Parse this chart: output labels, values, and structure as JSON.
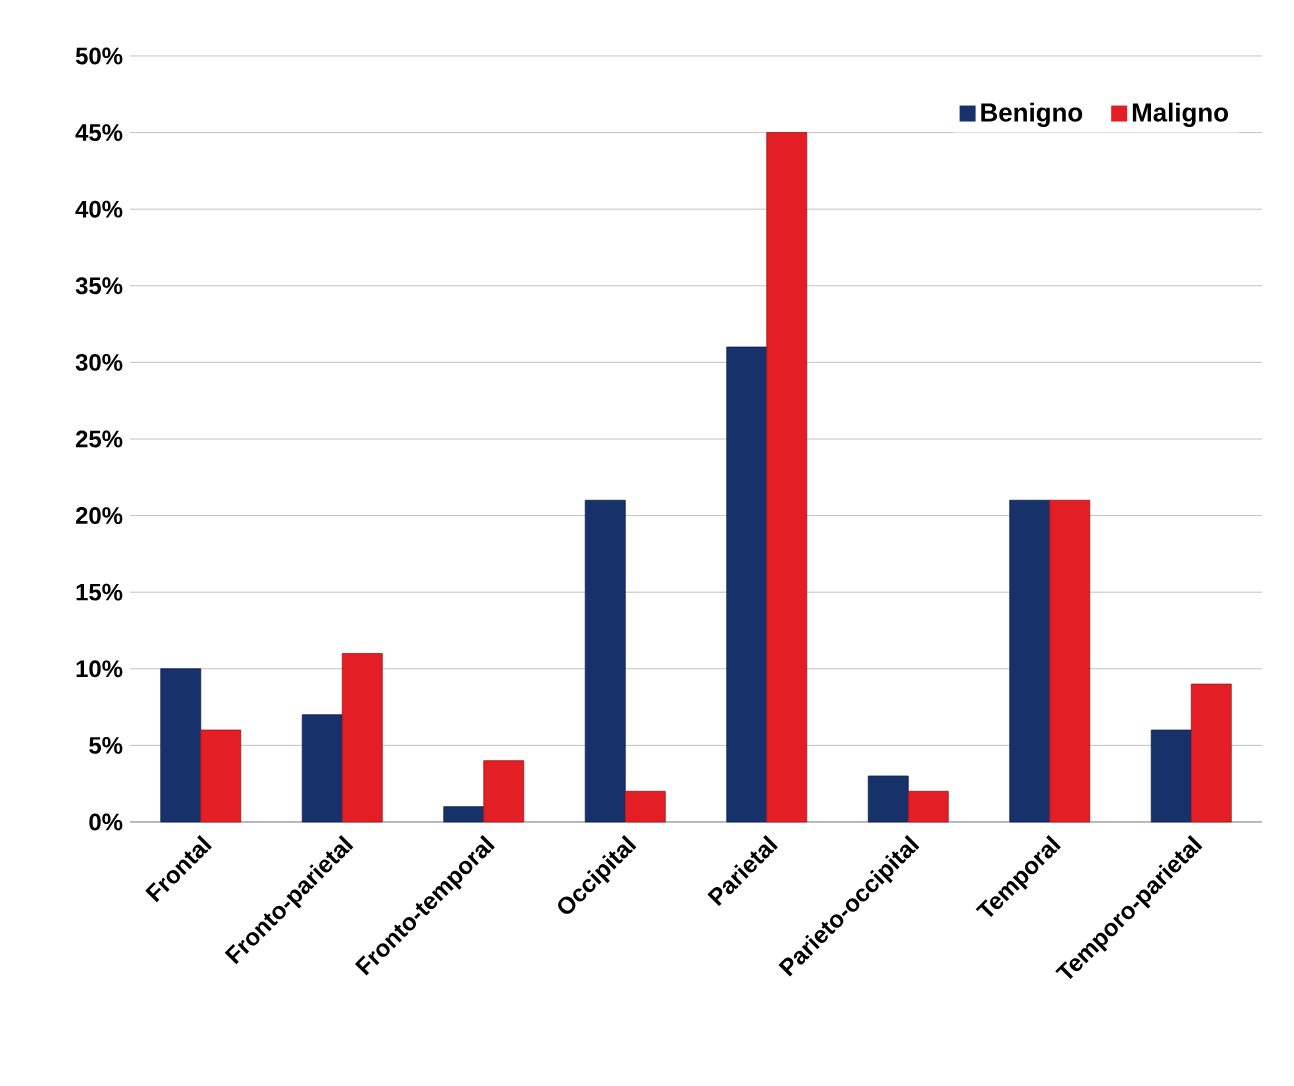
{
  "chart_data": {
    "type": "bar",
    "categories": [
      "Frontal",
      "Fronto-parietal",
      "Fronto-temporal",
      "Occipital",
      "Parietal",
      "Parieto-occipital",
      "Temporal",
      "Temporo-parietal"
    ],
    "series": [
      {
        "name": "Benigno",
        "color": "#17316b",
        "values": [
          10,
          7,
          1,
          21,
          31,
          3,
          21,
          6
        ]
      },
      {
        "name": "Maligno",
        "color": "#e31e24",
        "values": [
          6,
          11,
          4,
          2,
          45,
          2,
          21,
          9
        ]
      }
    ],
    "ylim": [
      0,
      50
    ],
    "yticks": [
      {
        "value": 0,
        "label": "0%"
      },
      {
        "value": 5,
        "label": "5%"
      },
      {
        "value": 10,
        "label": "10%"
      },
      {
        "value": 15,
        "label": "15%"
      },
      {
        "value": 20,
        "label": "20%"
      },
      {
        "value": 25,
        "label": "25%"
      },
      {
        "value": 30,
        "label": "30%"
      },
      {
        "value": 35,
        "label": "35%"
      },
      {
        "value": 40,
        "label": "40%"
      },
      {
        "value": 45,
        "label": "45%"
      },
      {
        "value": 50,
        "label": "50%"
      }
    ],
    "grid": "y",
    "legend": "top right"
  }
}
